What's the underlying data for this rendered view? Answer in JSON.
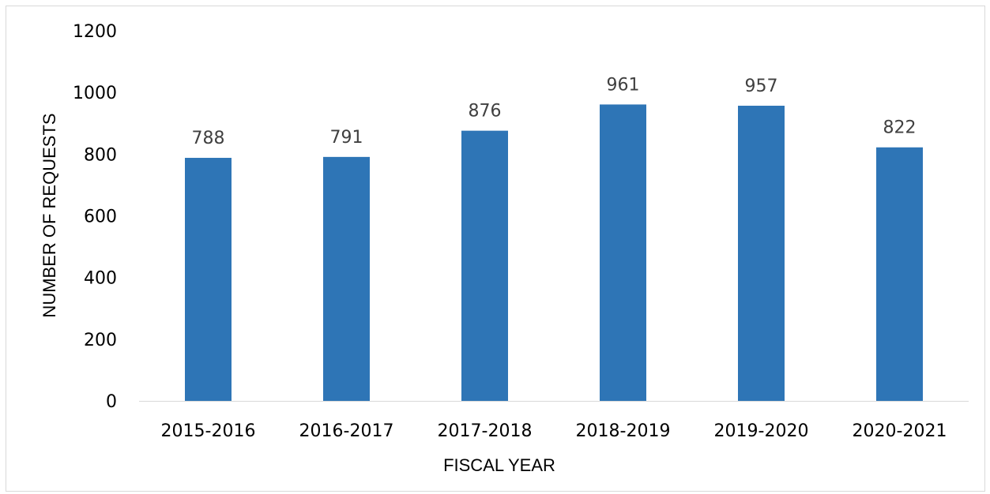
{
  "chart_data": {
    "type": "bar",
    "title": "",
    "xlabel": "FISCAL YEAR",
    "ylabel": "NUMBER OF REQUESTS",
    "categories": [
      "2015-2016",
      "2016-2017",
      "2017-2018",
      "2018-2019",
      "2019-2020",
      "2020-2021"
    ],
    "values": [
      788,
      791,
      876,
      961,
      957,
      822
    ],
    "data_labels": [
      "788",
      "791",
      "876",
      "961",
      "957",
      "822"
    ],
    "ylim": [
      0,
      1200
    ],
    "yticks": [
      "0",
      "200",
      "400",
      "600",
      "800",
      "1000",
      "1200"
    ],
    "grid": false,
    "legend": "none",
    "bar_color": "#2e75b6"
  }
}
